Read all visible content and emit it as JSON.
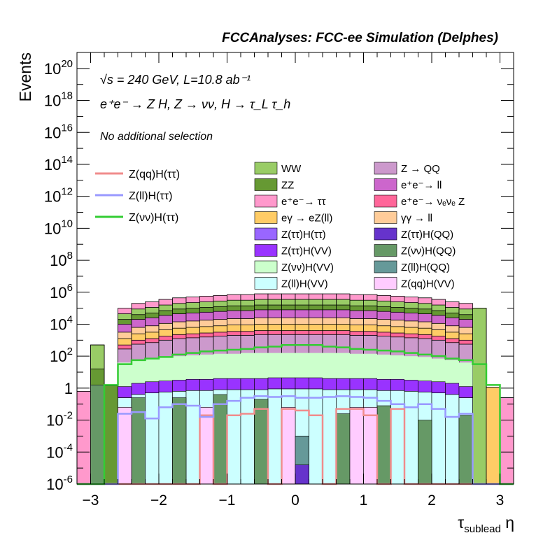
{
  "chart_data": {
    "type": "bar",
    "title": "FCCAnalyses: FCC-ee Simulation (Delphes)",
    "xlabel": "τ_sublead η",
    "ylabel": "Events",
    "log_y": true,
    "xlim": [
      -3.2,
      3.2
    ],
    "ylim": [
      1e-06,
      1e+21
    ],
    "x_ticks": [
      "−3",
      "−2",
      "−1",
      "0",
      "1",
      "2",
      "3"
    ],
    "y_ticks": [
      "10^-6",
      "10^-4",
      "10^-2",
      "1",
      "10^2",
      "10^4",
      "10^6",
      "10^8",
      "10^10",
      "10^12",
      "10^14",
      "10^16",
      "10^18",
      "10^20"
    ],
    "annotations": {
      "energy": "√s = 240 GeV, L=10.8 ab⁻¹",
      "process": "e⁺e⁻ → Z H, Z → νν, H → τ_L τ_h",
      "selection": "No additional selection"
    },
    "legend_lines": [
      {
        "label": "Z(qq)H(ττ)",
        "color": "#f08c8c"
      },
      {
        "label": "Z(ll)H(ττ)",
        "color": "#9999ff"
      },
      {
        "label": "Z(νν)H(ττ)",
        "color": "#33cc33"
      }
    ],
    "legend_fills": [
      {
        "label": "WW",
        "color": "#99cc66"
      },
      {
        "label": "Z → QQ",
        "color": "#cc99cc"
      },
      {
        "label": "ZZ",
        "color": "#669933"
      },
      {
        "label": "e⁺e⁻→ ll",
        "color": "#cc66cc"
      },
      {
        "label": "e⁺e⁻→ ττ",
        "color": "#ff99cc"
      },
      {
        "label": "e⁺e⁻→ νₑνₑ Z",
        "color": "#ff6699"
      },
      {
        "label": "eγ → eZ(ll)",
        "color": "#ffcc66"
      },
      {
        "label": "γγ → ll",
        "color": "#ffcc99"
      },
      {
        "label": "Z(ττ)H(ττ)",
        "color": "#9966ff"
      },
      {
        "label": "Z(ττ)H(QQ)",
        "color": "#6633cc"
      },
      {
        "label": "Z(ττ)H(VV)",
        "color": "#9933ff"
      },
      {
        "label": "Z(νν)H(QQ)",
        "color": "#669966"
      },
      {
        "label": "Z(νν)H(VV)",
        "color": "#ccffcc"
      },
      {
        "label": "Z(ll)H(QQ)",
        "color": "#669999"
      },
      {
        "label": "Z(ll)H(VV)",
        "color": "#ccffff"
      },
      {
        "label": "Z(qq)H(VV)",
        "color": "#ffccff"
      }
    ],
    "bin_edges": [
      -3.2,
      -3.0,
      -2.8,
      -2.6,
      -2.4,
      -2.2,
      -2.0,
      -1.8,
      -1.6,
      -1.4,
      -1.2,
      -1.0,
      -0.8,
      -0.6,
      -0.4,
      -0.2,
      0.0,
      0.2,
      0.4,
      0.6,
      0.8,
      1.0,
      1.2,
      1.4,
      1.6,
      1.8,
      2.0,
      2.2,
      2.4,
      2.6,
      2.8,
      3.0,
      3.2
    ],
    "stack_totals_log10": [
      -0.2,
      2.7,
      0.15,
      5.0,
      5.3,
      5.4,
      5.55,
      5.65,
      5.7,
      5.75,
      5.8,
      5.85,
      5.85,
      5.9,
      5.9,
      5.9,
      5.9,
      5.9,
      5.9,
      5.9,
      5.85,
      5.85,
      5.8,
      5.75,
      5.7,
      5.65,
      5.55,
      5.4,
      5.3,
      5.0,
      0.05,
      -0.6
    ],
    "series_log10": [
      {
        "name": "Z(νν)H(VV) top",
        "color": "#ccffcc",
        "values": [
          -9,
          -9,
          -9,
          1.6,
          1.75,
          1.85,
          1.95,
          2.0,
          2.05,
          2.1,
          2.15,
          2.15,
          2.2,
          2.2,
          2.2,
          2.2,
          2.2,
          2.2,
          2.2,
          2.2,
          2.15,
          2.15,
          2.1,
          2.05,
          2.0,
          1.95,
          1.85,
          1.75,
          1.6,
          -9,
          -9,
          -9
        ]
      },
      {
        "name": "Z(ll)H(VV) top",
        "color": "#ccffff",
        "values": [
          -9,
          -9,
          -9,
          -0.9,
          -0.7,
          -0.6,
          -0.55,
          -0.5,
          -0.45,
          -0.45,
          -0.4,
          -0.4,
          -0.4,
          -0.4,
          -0.35,
          -0.35,
          -0.35,
          -0.35,
          -0.4,
          -0.4,
          -0.4,
          -0.4,
          -0.45,
          -0.45,
          -0.5,
          -0.55,
          -0.6,
          -0.7,
          -0.9,
          -9,
          -9,
          -9
        ]
      },
      {
        "name": "Z(qq)H(ττ)",
        "color": "#f08c8c",
        "values": [
          -6,
          -6,
          -6,
          -6,
          -6,
          -6,
          -6,
          -6,
          -6,
          -1.7,
          -6,
          -1.7,
          -1.6,
          -1.3,
          -6,
          -1.3,
          -1.4,
          -1.7,
          -6,
          -1.3,
          -1.3,
          -1.7,
          -6,
          -1.3,
          -6,
          -6,
          -6,
          -6,
          -6,
          -6,
          -6,
          -6
        ]
      },
      {
        "name": "Z(ll)H(ττ)",
        "color": "#9999ff",
        "values": [
          -9,
          -9,
          -9,
          -1.6,
          -1.5,
          -1.9,
          -1.2,
          -1.0,
          -1.1,
          -1.8,
          -1.0,
          -0.8,
          -0.6,
          -0.5,
          -0.55,
          -0.5,
          -0.6,
          -0.6,
          -0.55,
          -0.5,
          -0.55,
          -0.6,
          -0.8,
          -1.0,
          -1.2,
          -1.0,
          -1.3,
          -1.8,
          -1.6,
          -9,
          -9,
          -9
        ]
      },
      {
        "name": "Z(νν)H(ττ)",
        "color": "#33cc33",
        "values": [
          -9,
          -9,
          0.2,
          1.5,
          1.75,
          1.85,
          1.95,
          2.1,
          2.2,
          2.3,
          2.35,
          2.4,
          2.45,
          2.55,
          2.6,
          2.7,
          2.7,
          2.7,
          2.6,
          2.55,
          2.45,
          2.4,
          2.35,
          2.3,
          2.2,
          2.1,
          2.0,
          1.85,
          1.75,
          1.5,
          0.2,
          -9
        ]
      }
    ]
  }
}
